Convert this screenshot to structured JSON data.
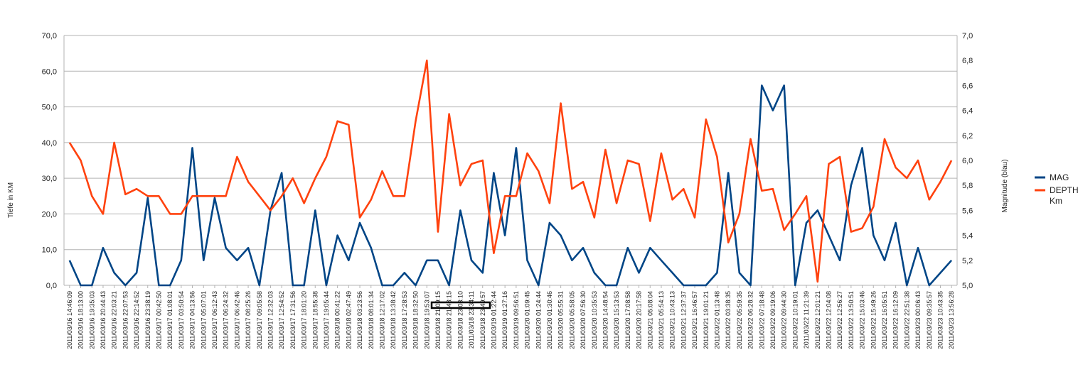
{
  "chart_data": {
    "type": "line",
    "title": "",
    "xlabel": "",
    "ylabel_left": "Tiefe in KM",
    "ylabel_right": "Magnitude (blau)",
    "ylim_left": [
      0,
      70
    ],
    "ylim_right": [
      5.0,
      7.0
    ],
    "yticks_left": [
      "0,0",
      "10,0",
      "20,0",
      "30,0",
      "40,0",
      "50,0",
      "60,0",
      "70,0"
    ],
    "yticks_right": [
      "5,0",
      "5,2",
      "5,4",
      "5,6",
      "5,8",
      "6,0",
      "6,2",
      "6,4",
      "6,6",
      "6,8",
      "7,0"
    ],
    "grid": true,
    "legend_position": "right",
    "colors": {
      "mag": "#004586",
      "depth": "#ff420e",
      "grid": "#b3b3b3"
    },
    "categories": [
      "2011/03/16 14:46:09",
      "2011/03/16 18:13:00",
      "2011/03/16 19:35:03",
      "2011/03/16 20:44:43",
      "2011/03/16 22:03:21",
      "2011/03/16 22:07:53",
      "2011/03/16 22:14:52",
      "2011/03/16 23:38:19",
      "2011/03/17 00:42:50",
      "2011/03/17 01:08:01",
      "2011/03/17 03:50:54",
      "2011/03/17 04:13:56",
      "2011/03/17 05:07:01",
      "2011/03/17 06:12:43",
      "2011/03/17 06:24:32",
      "2011/03/17 06:42:46",
      "2011/03/17 08:25:26",
      "2011/03/17 09:05:58",
      "2011/03/17 12:32:03",
      "2011/03/17 12:54:52",
      "2011/03/17 17:31:56",
      "2011/03/17 18:01:20",
      "2011/03/17 18:55:38",
      "2011/03/17 19:05:44",
      "2011/03/18 00:41:22",
      "2011/03/18 02:47:49",
      "2011/03/18 03:23:56",
      "2011/03/18 08:01:34",
      "2011/03/18 12:17:02",
      "2011/03/18 13:38:42",
      "2011/03/18 17:28:53",
      "2011/03/18 18:32:50",
      "2011/03/18 19:53:07",
      "2011/03/18 21:09:15",
      "2011/03/18 21:48:15",
      "2011/03/18 23:03:10",
      "2011/03/18 23:34:11",
      "2011/03/18 23:49:57",
      "2011/03/19 01:22:44",
      "2011/03/19 01:27:16",
      "2011/03/19 09:56:51",
      "2011/03/20 01:09:45",
      "2011/03/20 01:24:44",
      "2011/03/20 01:30:46",
      "2011/03/20 05:55:31",
      "2011/03/20 05:58:05",
      "2011/03/20 07:56:30",
      "2011/03/20 10:35:53",
      "2011/03/20 14:48:54",
      "2011/03/20 15:13:53",
      "2011/03/20 17:08:58",
      "2011/03/20 20:17:58",
      "2011/03/21 05:08:04",
      "2011/03/21 05:54:13",
      "2011/03/21 10:43:13",
      "2011/03/21 12:37:37",
      "2011/03/21 16:46:57",
      "2011/03/21 19:01:21",
      "2011/03/22 01:13:48",
      "2011/03/22 03:38:35",
      "2011/03/22 05:59:35",
      "2011/03/22 06:28:32",
      "2011/03/22 07:18:48",
      "2011/03/22 09:19:06",
      "2011/03/22 09:44:30",
      "2011/03/22 10:19:01",
      "2011/03/22 11:21:39",
      "2011/03/22 12:01:21",
      "2011/03/22 12:04:08",
      "2011/03/22 12:56:27",
      "2011/03/22 13:50:51",
      "2011/03/22 15:03:46",
      "2011/03/22 15:49:26",
      "2011/03/22 16:05:51",
      "2011/03/22 16:12:09",
      "2011/03/22 22:51:38",
      "2011/03/23 00:06:43",
      "2011/03/23 09:35:57",
      "2011/03/23 10:43:35",
      "2011/03/23 13:56:28"
    ],
    "series": [
      {
        "name": "MAG",
        "axis": "right",
        "values": [
          5.2,
          5.0,
          5.0,
          5.3,
          5.1,
          5.0,
          5.1,
          5.7,
          5.0,
          5.0,
          5.2,
          6.1,
          5.2,
          5.7,
          5.3,
          5.2,
          5.3,
          5.0,
          5.6,
          5.9,
          5.0,
          5.0,
          5.6,
          5.0,
          5.4,
          5.2,
          5.5,
          5.3,
          5.0,
          5.0,
          5.1,
          5.0,
          5.2,
          5.2,
          5.0,
          5.6,
          5.2,
          5.1,
          5.9,
          5.4,
          6.1,
          5.2,
          5.0,
          5.5,
          5.4,
          5.2,
          5.3,
          5.1,
          5.0,
          5.0,
          5.3,
          5.1,
          5.3,
          5.2,
          5.1,
          5.0,
          5.0,
          5.0,
          5.1,
          5.9,
          5.1,
          5.0,
          6.6,
          6.4,
          6.6,
          5.0,
          5.5,
          5.6,
          5.4,
          5.2,
          5.8,
          6.1,
          5.4,
          5.2,
          5.5,
          5.0,
          5.3,
          5.0,
          5.1,
          5.2
        ]
      },
      {
        "name": "DEPTH Km",
        "axis": "left",
        "values": [
          40.0,
          35.0,
          25.0,
          20.0,
          40.0,
          25.5,
          27.0,
          25.0,
          25.0,
          20.0,
          20.0,
          25.0,
          25.0,
          25.0,
          25.0,
          36.0,
          29.0,
          25.0,
          21.0,
          25.0,
          30.0,
          23.0,
          30.0,
          36.0,
          46.0,
          45.0,
          19.0,
          24.0,
          32.0,
          25.0,
          25.0,
          46.0,
          63.0,
          15.0,
          48.0,
          28.0,
          34.0,
          35.0,
          9.0,
          25.0,
          25.0,
          37.0,
          32.0,
          23.0,
          51.0,
          27.0,
          29.0,
          19.0,
          38.0,
          23.0,
          35.0,
          34.0,
          18.0,
          37.0,
          24.0,
          27.0,
          19.0,
          46.5,
          36.0,
          12.0,
          20.0,
          41.0,
          26.5,
          27.0,
          15.5,
          20.0,
          25.0,
          1.0,
          34.0,
          36.0,
          15.0,
          16.0,
          22.0,
          41.0,
          33.0,
          30.0,
          35.0,
          24.0,
          29.0,
          35.0
        ]
      }
    ],
    "legend": [
      "MAG",
      "DEPTH Km"
    ]
  }
}
